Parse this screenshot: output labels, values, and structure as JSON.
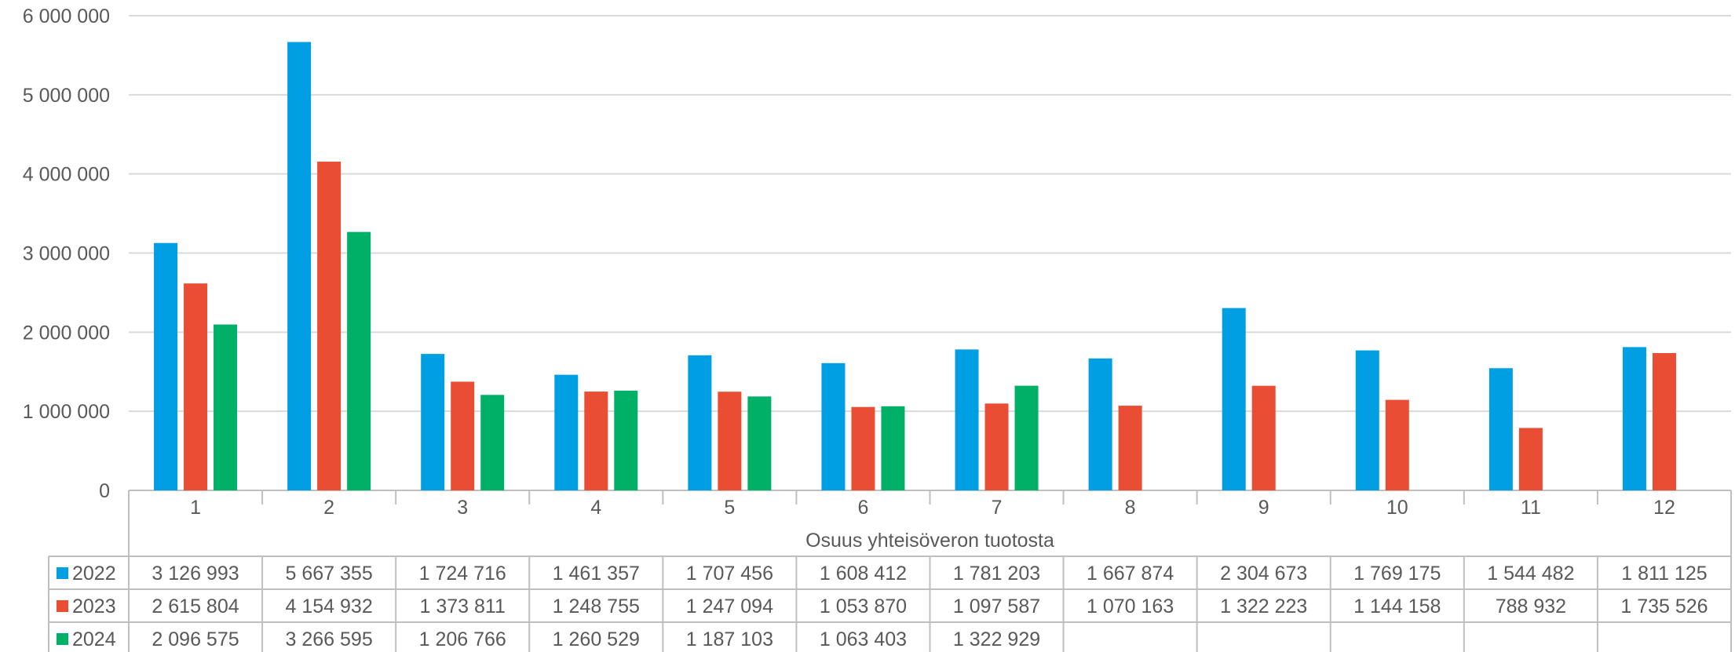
{
  "chart_data": {
    "type": "bar",
    "categories": [
      "1",
      "2",
      "3",
      "4",
      "5",
      "6",
      "7",
      "8",
      "9",
      "10",
      "11",
      "12"
    ],
    "series": [
      {
        "name": "2022",
        "color": "#009FE3",
        "values": [
          3126993,
          5667355,
          1724716,
          1461357,
          1707456,
          1608412,
          1781203,
          1667874,
          2304673,
          1769175,
          1544482,
          1811125
        ],
        "labels": [
          "3 126 993",
          "5 667 355",
          "1 724 716",
          "1 461 357",
          "1 707 456",
          "1 608 412",
          "1 781 203",
          "1 667 874",
          "2 304 673",
          "1 769 175",
          "1 544 482",
          "1 811 125"
        ]
      },
      {
        "name": "2023",
        "color": "#E94E35",
        "values": [
          2615804,
          4154932,
          1373811,
          1248755,
          1247094,
          1053870,
          1097587,
          1070163,
          1322223,
          1144158,
          788932,
          1735526
        ],
        "labels": [
          "2 615 804",
          "4 154 932",
          "1 373 811",
          "1 248 755",
          "1 247 094",
          "1 053 870",
          "1 097 587",
          "1 070 163",
          "1 322 223",
          "1 144 158",
          "788 932",
          "1 735 526"
        ]
      },
      {
        "name": "2024",
        "color": "#00B066",
        "values": [
          2096575,
          3266595,
          1206766,
          1260529,
          1187103,
          1063403,
          1322929,
          null,
          null,
          null,
          null,
          null
        ],
        "labels": [
          "2 096 575",
          "3 266 595",
          "1 206 766",
          "1 260 529",
          "1 187 103",
          "1 063 403",
          "1 322 929",
          "",
          "",
          "",
          "",
          ""
        ]
      }
    ],
    "xlabel": "Osuus yhteisöveron tuotosta",
    "ylabel": "",
    "ylim": [
      0,
      6000000
    ],
    "yticks": [
      0,
      1000000,
      2000000,
      3000000,
      4000000,
      5000000,
      6000000
    ],
    "ytick_labels": [
      "0",
      "1 000 000",
      "2 000 000",
      "3 000 000",
      "4 000 000",
      "5 000 000",
      "6 000 000"
    ],
    "grid": true,
    "legend": "data-table"
  }
}
